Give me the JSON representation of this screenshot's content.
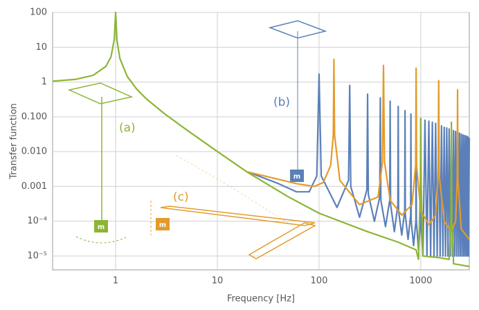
{
  "chart_data": {
    "type": "line",
    "x_label": "Frequency [Hz]",
    "y_label": "Transfer function",
    "xscale": "log",
    "yscale": "log",
    "grid": true,
    "xlim": [
      0.24,
      3000
    ],
    "ylim": [
      4e-06,
      100
    ],
    "xticks": [
      1,
      10,
      100,
      1000
    ],
    "yticks": [
      100,
      10,
      1,
      {
        "value": 0.1,
        "label": "0.100"
      },
      {
        "value": 0.01,
        "label": "0.010"
      },
      0.001,
      {
        "value": 0.0001,
        "label": "10⁻⁴"
      },
      {
        "value": 1e-05,
        "label": "10⁻⁵"
      }
    ],
    "annotations": [
      "(a)",
      "(b)",
      "(c)"
    ],
    "mass_label": "m",
    "series": [
      {
        "color": "#5b80b9",
        "x": [
          20,
          40,
          60,
          80,
          95,
          100,
          105,
          150,
          195,
          200,
          205,
          250,
          295,
          300,
          305,
          350,
          395,
          400,
          405,
          450,
          495,
          500,
          505,
          550,
          595,
          600,
          605,
          650,
          695,
          700,
          705,
          750,
          795,
          800,
          805,
          850,
          895,
          900,
          905,
          950,
          995,
          1000,
          1005,
          1050,
          1100,
          1150,
          1200,
          1250,
          1300,
          1350,
          1400,
          1450,
          1500,
          1550,
          1600,
          1650,
          1700,
          1750,
          1800,
          1850,
          1900,
          1950,
          2000,
          2050,
          2100,
          2150,
          2200,
          2250,
          2300,
          2350,
          2400,
          2450,
          2500,
          2550,
          2600,
          2650,
          2700,
          2750,
          2800,
          2850,
          2900,
          2950,
          3000
        ],
        "values": [
          0.0026,
          0.0012,
          0.0007,
          0.0007,
          0.002,
          1.7,
          0.002,
          0.00025,
          0.0015,
          0.8,
          0.001,
          0.00013,
          0.0008,
          0.45,
          0.0006,
          0.0001,
          0.0005,
          0.35,
          0.0004,
          7e-05,
          0.0004,
          0.28,
          0.0003,
          5e-05,
          0.0003,
          0.2,
          0.0002,
          4e-05,
          0.0002,
          0.15,
          0.00015,
          3e-05,
          0.00015,
          0.12,
          0.0001,
          2e-05,
          0.0001,
          0.1,
          0.0001,
          1.5e-05,
          0.0001,
          0.09,
          0.0001,
          1e-05,
          0.08,
          1e-05,
          0.075,
          1e-05,
          0.07,
          1e-05,
          0.065,
          1e-05,
          0.06,
          1e-05,
          0.055,
          1e-05,
          0.05,
          1e-05,
          0.048,
          1e-05,
          0.045,
          1e-05,
          0.043,
          1e-05,
          0.04,
          1e-05,
          0.038,
          1e-05,
          0.036,
          1e-05,
          0.034,
          1e-05,
          0.032,
          1e-05,
          0.03,
          1e-05,
          0.029,
          1e-05,
          0.028,
          1e-05,
          0.027,
          1e-05,
          0.025
        ]
      },
      {
        "color": "#e39b2b",
        "x": [
          20,
          40,
          60,
          90,
          110,
          130,
          138,
          140,
          142,
          160,
          250,
          380,
          420,
          430,
          440,
          500,
          650,
          820,
          890,
          900,
          910,
          1000,
          1200,
          1400,
          1480,
          1500,
          1520,
          1700,
          2000,
          2200,
          2280,
          2300,
          2320,
          2500,
          3000
        ],
        "values": [
          0.0026,
          0.0016,
          0.0012,
          0.001,
          0.0013,
          0.004,
          0.03,
          4.5,
          0.03,
          0.0015,
          0.0003,
          0.0005,
          0.005,
          3,
          0.005,
          0.0004,
          0.00015,
          0.0003,
          0.004,
          2.5,
          0.004,
          0.0002,
          8e-05,
          0.00015,
          0.002,
          1.1,
          0.002,
          0.0001,
          5e-05,
          0.0001,
          0.0015,
          0.6,
          0.0015,
          6e-05,
          3e-05
        ]
      },
      {
        "color": "#8cb535",
        "x": [
          0.24,
          0.4,
          0.6,
          0.8,
          0.9,
          0.97,
          1,
          1.03,
          1.1,
          1.3,
          1.6,
          2,
          3,
          5,
          10,
          20,
          50,
          100,
          300,
          600,
          900,
          950,
          990,
          1000,
          1010,
          1050,
          1500,
          1900,
          1980,
          2000,
          2020,
          2100,
          3000
        ],
        "values": [
          1.06,
          1.19,
          1.56,
          2.8,
          5.3,
          17,
          100,
          16,
          4.8,
          1.45,
          0.64,
          0.33,
          0.125,
          0.042,
          0.0101,
          0.0025,
          0.0005,
          0.00017,
          5e-05,
          2.5e-05,
          1.5e-05,
          8e-06,
          0.001,
          0.09,
          0.001,
          1e-05,
          9e-06,
          8e-06,
          0.0001,
          0.07,
          0.0001,
          6e-06,
          5e-06
        ]
      }
    ]
  }
}
